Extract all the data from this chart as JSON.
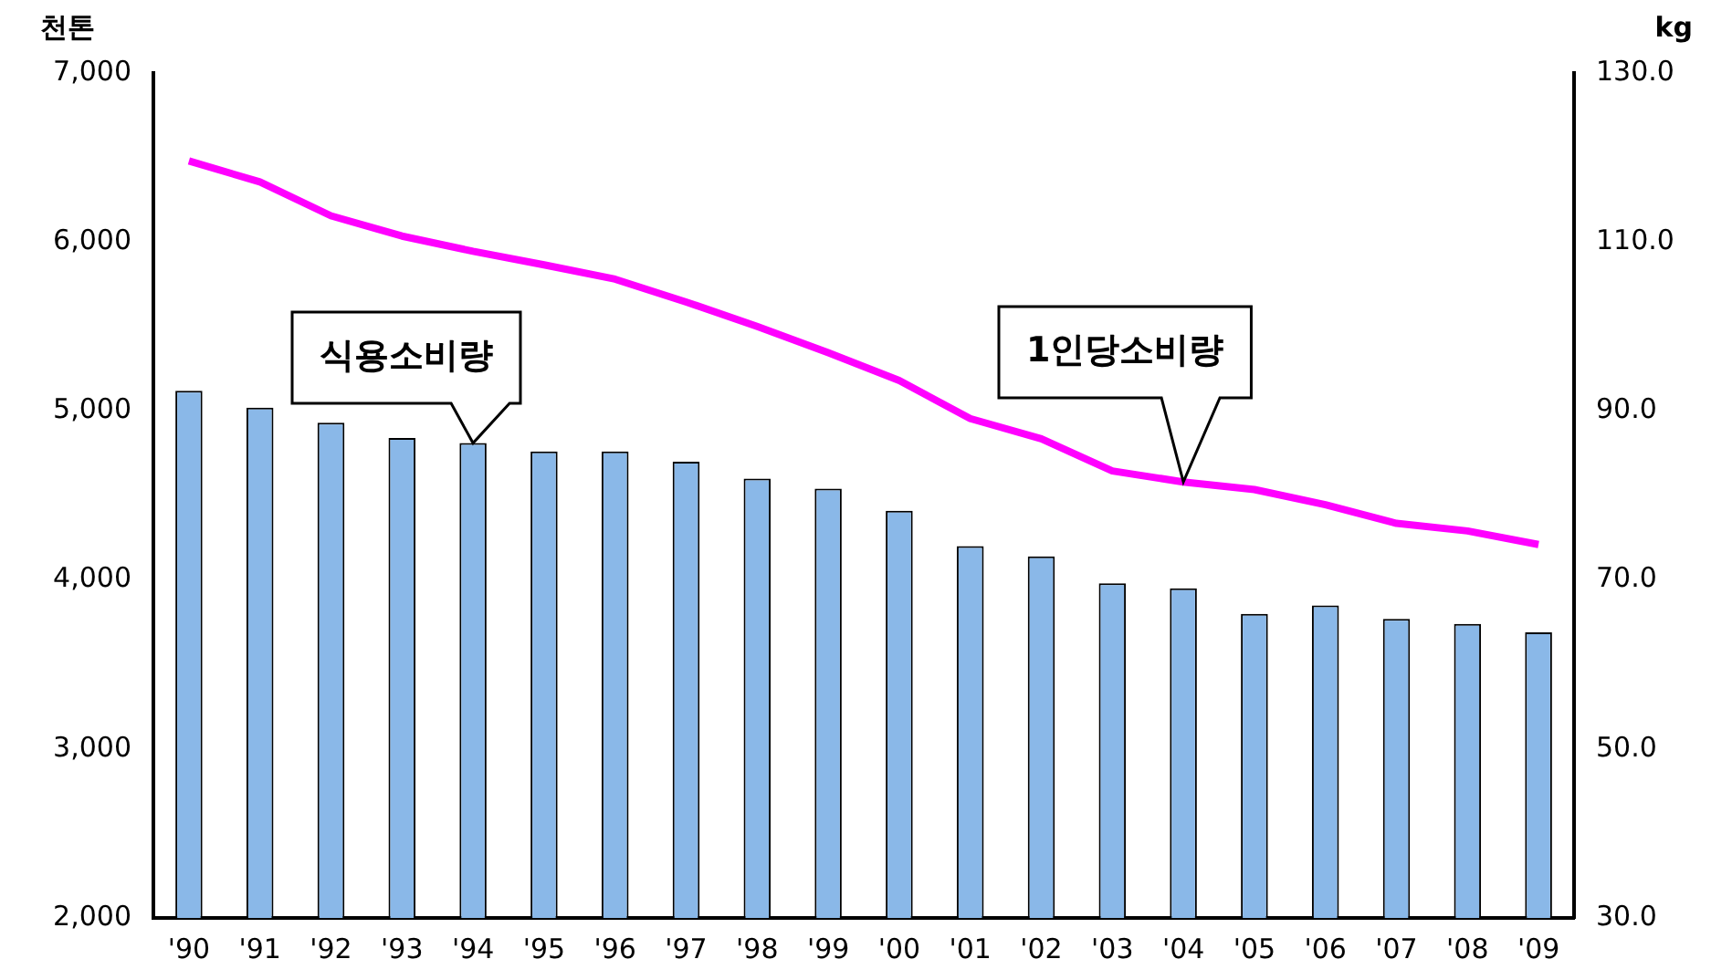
{
  "chart_data": {
    "type": "bar",
    "ylabel": "천톤",
    "y2label": "kg",
    "categories": [
      "'90",
      "'91",
      "'92",
      "'93",
      "'94",
      "'95",
      "'96",
      "'97",
      "'98",
      "'99",
      "'00",
      "'01",
      "'02",
      "'03",
      "'04",
      "'05",
      "'06",
      "'07",
      "'08",
      "'09"
    ],
    "series": [
      {
        "name": "식용소비량",
        "color": "#8ab8e8",
        "values": [
          5120,
          5020,
          4930,
          4840,
          4810,
          4760,
          4760,
          4700,
          4600,
          4540,
          4410,
          4200,
          4140,
          3980,
          3950,
          3800,
          3850,
          3770,
          3740,
          3690
        ]
      },
      {
        "name": "1인당소비량",
        "type": "line",
        "axis": "y2",
        "color": "#ff00ff",
        "values": [
          119.6,
          117.1,
          113.1,
          110.7,
          108.9,
          107.3,
          105.6,
          102.9,
          100.0,
          96.9,
          93.6,
          89.1,
          86.7,
          82.9,
          81.6,
          80.7,
          78.9,
          76.7,
          75.8,
          74.2
        ]
      }
    ],
    "ylim": [
      2000,
      7000
    ],
    "yticks": [
      {
        "value": 2000,
        "label": "2,000"
      },
      {
        "value": 3000,
        "label": "3,000"
      },
      {
        "value": 4000,
        "label": "4,000"
      },
      {
        "value": 5000,
        "label": "5,000"
      },
      {
        "value": 6000,
        "label": "6,000"
      },
      {
        "value": 7000,
        "label": "7,000"
      }
    ],
    "y2lim": [
      30,
      130
    ],
    "y2ticks": [
      {
        "value": 30,
        "label": "30.0"
      },
      {
        "value": 50,
        "label": "50.0"
      },
      {
        "value": 70,
        "label": "70.0"
      },
      {
        "value": 90,
        "label": "90.0"
      },
      {
        "value": 110,
        "label": "110.0"
      },
      {
        "value": 130,
        "label": "130.0"
      }
    ],
    "grid": false,
    "legend": false,
    "marker": "none",
    "line_style": "solid"
  }
}
